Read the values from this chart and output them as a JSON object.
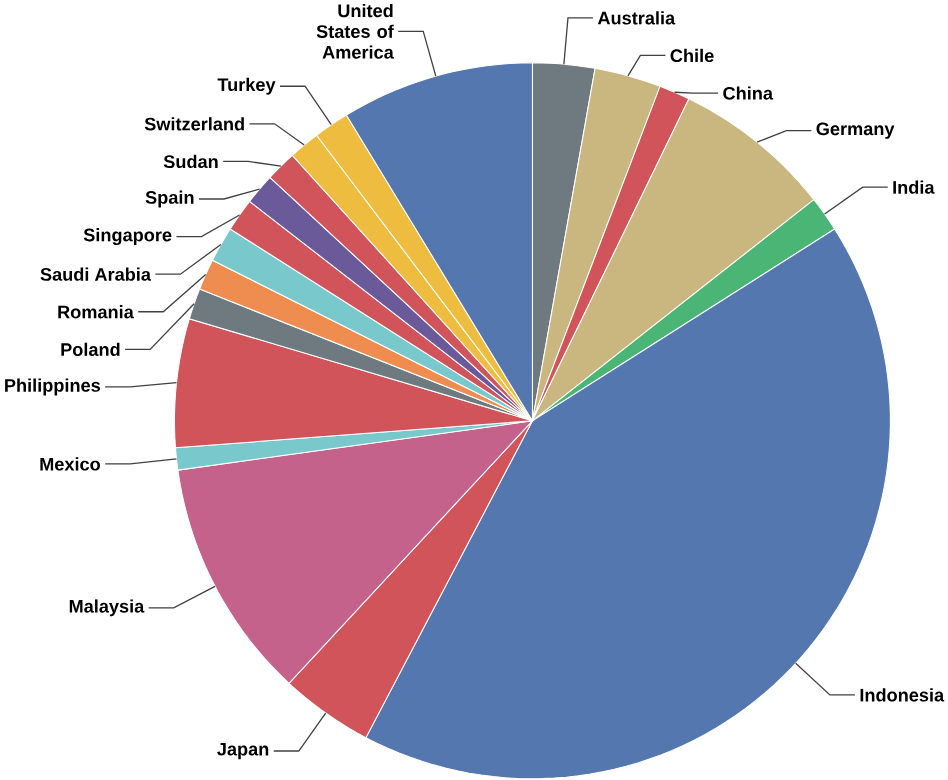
{
  "chart_data": {
    "type": "pie",
    "categories": [
      "Australia",
      "Chile",
      "China",
      "Germany",
      "India",
      "Indonesia",
      "Japan",
      "Malaysia",
      "Mexico",
      "Philippines",
      "Poland",
      "Romania",
      "Saudi Arabia",
      "Singapore",
      "Spain",
      "Sudan",
      "Switzerland",
      "Turkey",
      "United States of America"
    ],
    "values": [
      2.8,
      3.0,
      1.4,
      7.2,
      1.6,
      41.7,
      4.2,
      10.9,
      1.0,
      5.8,
      1.4,
      1.4,
      1.6,
      1.5,
      1.4,
      1.4,
      1.4,
      1.6,
      8.7
    ],
    "colors": [
      "#6f7a80",
      "#c9b77f",
      "#d1545a",
      "#c9b77f",
      "#4bb576",
      "#5577b0",
      "#d1545a",
      "#c4628c",
      "#79c8cc",
      "#d1545a",
      "#6f7a80",
      "#ef8c50",
      "#79c8cc",
      "#d1545a",
      "#6b5a9a",
      "#d1545a",
      "#eebd3f",
      "#eebd3f",
      "#5577b0"
    ]
  }
}
